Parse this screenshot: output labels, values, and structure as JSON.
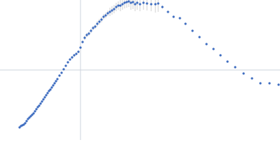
{
  "chart_data": {
    "type": "scatter",
    "x": [
      -0.87,
      -0.85,
      -0.83,
      -0.81,
      -0.79,
      -0.77,
      -0.75,
      -0.73,
      -0.71,
      -0.69,
      -0.67,
      -0.65,
      -0.63,
      -0.61,
      -0.59,
      -0.57,
      -0.55,
      -0.53,
      -0.51,
      -0.49,
      -0.47,
      -0.45,
      -0.43,
      -0.41,
      -0.39,
      -0.37,
      -0.35,
      -0.33,
      -0.3,
      -0.27,
      -0.24,
      -0.21,
      -0.18,
      -0.15,
      -0.12,
      -0.09,
      -0.06,
      -0.03,
      0,
      0.03,
      0.06,
      0.09,
      0.12,
      0.15,
      0.18,
      0.21,
      0.24,
      0.27,
      0.3,
      0.33,
      0.36,
      0.39,
      0.42,
      0.45,
      0.48,
      0.51,
      0.54,
      0.57,
      0.6,
      0.63,
      0.66,
      0.69,
      0.72,
      0.75,
      0.78,
      0.81,
      0.85,
      0.9,
      0.95,
      1.01,
      1.07,
      1.11,
      1.17,
      1.25,
      1.33,
      1.42,
      1.5,
      1.6,
      1.7,
      1.8,
      1.9,
      2.0,
      2.1,
      2.21,
      2.33,
      2.45,
      2.57,
      2.7,
      2.83
    ],
    "values": [
      -0.82,
      -0.8,
      -0.79,
      -0.78,
      -0.76,
      -0.73,
      -0.7,
      -0.68,
      -0.66,
      -0.64,
      -0.62,
      -0.59,
      -0.56,
      -0.53,
      -0.51,
      -0.48,
      -0.45,
      -0.42,
      -0.39,
      -0.36,
      -0.33,
      -0.3,
      -0.28,
      -0.25,
      -0.22,
      -0.19,
      -0.16,
      -0.13,
      -0.08,
      -0.04,
      0.01,
      0.06,
      0.11,
      0.15,
      0.18,
      0.21,
      0.23,
      0.26,
      0.32,
      0.4,
      0.46,
      0.5,
      0.52,
      0.56,
      0.6,
      0.62,
      0.66,
      0.69,
      0.72,
      0.76,
      0.78,
      0.81,
      0.83,
      0.85,
      0.87,
      0.9,
      0.92,
      0.92,
      0.94,
      0.96,
      0.97,
      0.98,
      0.96,
      0.97,
      0.94,
      0.96,
      0.94,
      0.96,
      0.95,
      0.94,
      0.94,
      0.95,
      0.9,
      0.83,
      0.76,
      0.74,
      0.66,
      0.56,
      0.47,
      0.37,
      0.3,
      0.21,
      0.12,
      0.04,
      -0.05,
      -0.12,
      -0.19,
      -0.19,
      -0.21
    ],
    "errors": [
      0.01,
      0.01,
      0.01,
      0.01,
      0.01,
      0.01,
      0.01,
      0.01,
      0.01,
      0.01,
      0.01,
      0.01,
      0.01,
      0.01,
      0.01,
      0.01,
      0.01,
      0.01,
      0.01,
      0.01,
      0.01,
      0.01,
      0.01,
      0.01,
      0.01,
      0.01,
      0.01,
      0.01,
      0.01,
      0.01,
      0.01,
      0.01,
      0.01,
      0.01,
      0.02,
      0.02,
      0.02,
      0.02,
      0.02,
      0.02,
      0.03,
      0.03,
      0.03,
      0.03,
      0.03,
      0.03,
      0.04,
      0.04,
      0.04,
      0.04,
      0.04,
      0.04,
      0.06,
      0.06,
      0.06,
      0.06,
      0.06,
      0.08,
      0.08,
      0.08,
      0.08,
      0.08,
      0.1,
      0.1,
      0.1,
      0.1,
      0.1,
      0.1,
      0.1,
      0.1,
      0.12,
      0.12,
      0.02,
      0.01,
      0.01,
      0.01,
      0.01,
      0.01,
      0.01,
      0.01,
      0.01,
      0.01,
      0.01,
      0.01,
      0.01,
      0.01,
      0.01,
      0.01,
      0.01
    ],
    "color": "#3d6cc0",
    "error_color": "#c4c4c4",
    "grid_color": "#cdd3de",
    "xlim": [
      -1.15,
      2.85
    ],
    "ylim": [
      -1,
      1
    ],
    "xticks": [
      0
    ],
    "yticks": [
      0
    ],
    "grid": true
  }
}
